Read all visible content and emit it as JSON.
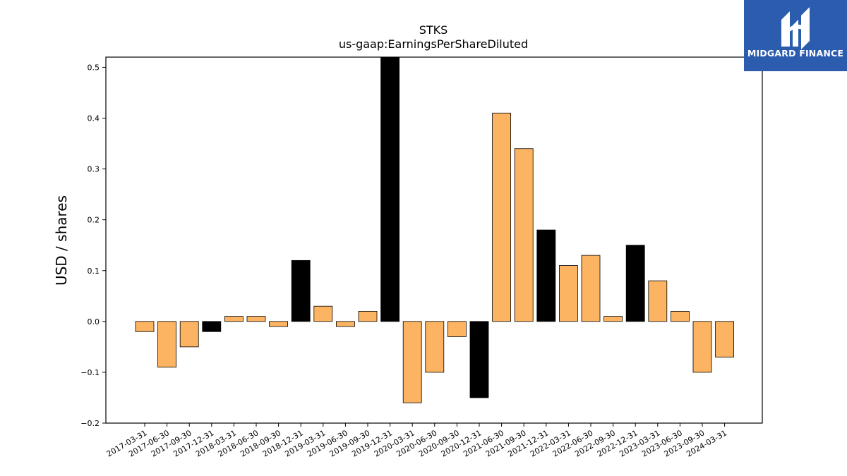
{
  "chart_data": {
    "type": "bar",
    "title": "STKS",
    "subtitle": "us-gaap:EarningsPerShareDiluted",
    "xlabel": "",
    "ylabel": "USD / shares",
    "ylim": [
      -0.2,
      0.52
    ],
    "yticks": [
      "0.5",
      "0.4",
      "0.3",
      "0.2",
      "0.1",
      "0.0",
      "−0.1",
      "−0.2"
    ],
    "ytick_values": [
      0.5,
      0.4,
      0.3,
      0.2,
      0.1,
      0.0,
      -0.1,
      -0.2
    ],
    "grid": false,
    "colors": {
      "quarter": "#fdb462",
      "annual": "#000000",
      "edge": "#000000"
    },
    "categories": [
      "2017-03-31",
      "2017-06-30",
      "2017-09-30",
      "2017-12-31",
      "2018-03-31",
      "2018-06-30",
      "2018-09-30",
      "2018-12-31",
      "2019-03-31",
      "2019-06-30",
      "2019-09-30",
      "2019-12-31",
      "2020-03-31",
      "2020-06-30",
      "2020-09-30",
      "2020-12-31",
      "2021-06-30",
      "2021-09-30",
      "2021-12-31",
      "2022-03-31",
      "2022-06-30",
      "2022-09-30",
      "2022-12-31",
      "2023-03-31",
      "2023-06-30",
      "2023-09-30",
      "2024-03-31"
    ],
    "values": [
      -0.02,
      -0.09,
      -0.05,
      -0.02,
      0.01,
      0.01,
      -0.01,
      0.12,
      0.03,
      -0.01,
      0.02,
      0.52,
      -0.16,
      -0.1,
      -0.03,
      -0.15,
      0.41,
      0.34,
      0.18,
      0.11,
      0.13,
      0.01,
      0.15,
      0.08,
      0.02,
      -0.1,
      -0.07
    ],
    "highlight": [
      false,
      false,
      false,
      true,
      false,
      false,
      false,
      true,
      false,
      false,
      false,
      true,
      false,
      false,
      false,
      true,
      false,
      false,
      true,
      false,
      false,
      false,
      true,
      false,
      false,
      false,
      false
    ]
  },
  "logo": {
    "text": "MIDGARD FINANCE",
    "icon": "midgard-logo-icon",
    "background": "#2b5cad"
  }
}
